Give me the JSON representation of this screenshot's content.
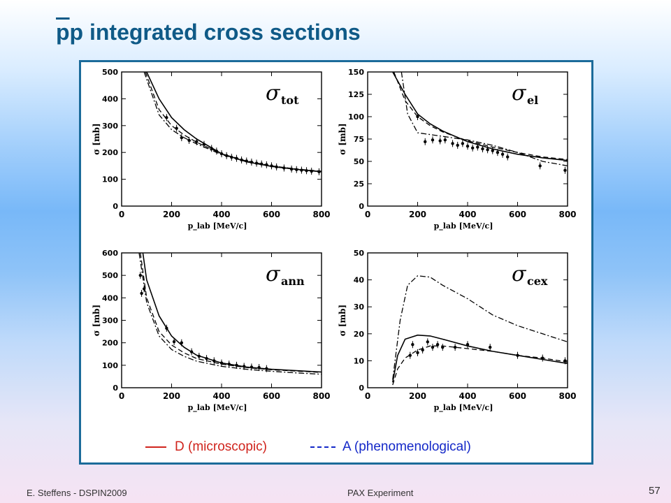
{
  "slide": {
    "title_bar": "p",
    "title_rest": "p integrated cross sections",
    "footer_left": "E. Steffens  -  DSPIN2009",
    "footer_center": "PAX Experiment",
    "page_number": "57"
  },
  "legend": {
    "solid_label": "D (microscopic)",
    "dashed_label": "A (phenomenological)",
    "solid_color": "#d0241d",
    "dashed_color": "#1428c8"
  },
  "chart_data": [
    {
      "type": "line",
      "panel_label": "σ",
      "panel_sub": "tot",
      "ylabel": "σ [mb]",
      "xlabel": "p_lab [MeV/c]",
      "xlim": [
        0,
        800
      ],
      "ylim": [
        0,
        500
      ],
      "xticks": [
        0,
        200,
        400,
        600,
        800
      ],
      "yticks": [
        0,
        100,
        200,
        300,
        400,
        500
      ],
      "series": [
        {
          "style": "solid",
          "x": [
            100,
            150,
            200,
            250,
            300,
            400,
            500,
            600,
            700,
            800
          ],
          "y": [
            500,
            400,
            330,
            285,
            250,
            195,
            165,
            148,
            137,
            128
          ]
        },
        {
          "style": "dashed",
          "x": [
            95,
            150,
            200,
            250,
            300,
            400,
            500,
            600,
            700,
            800
          ],
          "y": [
            500,
            360,
            300,
            265,
            238,
            195,
            168,
            150,
            138,
            130
          ]
        },
        {
          "style": "dashdot",
          "x": [
            90,
            150,
            200,
            250,
            300,
            400,
            500,
            600,
            700,
            800
          ],
          "y": [
            500,
            340,
            285,
            255,
            232,
            192,
            166,
            148,
            137,
            128
          ]
        }
      ],
      "points": {
        "x": [
          180,
          220,
          240,
          270,
          300,
          330,
          360,
          380,
          400,
          420,
          440,
          460,
          480,
          500,
          520,
          540,
          560,
          580,
          600,
          620,
          650,
          680,
          700,
          720,
          740,
          760,
          790
        ],
        "y": [
          330,
          290,
          255,
          245,
          240,
          230,
          215,
          205,
          195,
          188,
          182,
          178,
          172,
          168,
          164,
          160,
          157,
          154,
          150,
          146,
          142,
          138,
          136,
          134,
          132,
          130,
          128
        ]
      }
    },
    {
      "type": "line",
      "panel_label": "σ",
      "panel_sub": "el",
      "ylabel": "σ [mb]",
      "xlabel": "p_lab [MeV/c]",
      "xlim": [
        0,
        800
      ],
      "ylim": [
        0,
        150
      ],
      "xticks": [
        0,
        200,
        400,
        600,
        800
      ],
      "yticks": [
        0,
        25,
        50,
        75,
        100,
        125,
        150
      ],
      "series": [
        {
          "style": "solid",
          "x": [
            100,
            150,
            200,
            250,
            300,
            400,
            500,
            600,
            700,
            800
          ],
          "y": [
            150,
            125,
            103,
            92,
            84,
            72,
            64,
            58,
            54,
            51
          ]
        },
        {
          "style": "dashed",
          "x": [
            105,
            150,
            200,
            250,
            300,
            400,
            500,
            600,
            700,
            800
          ],
          "y": [
            150,
            118,
            100,
            90,
            83,
            73,
            66,
            60,
            55,
            52
          ]
        },
        {
          "style": "dashdot",
          "x": [
            135,
            160,
            200,
            250,
            300,
            400,
            500,
            600,
            700,
            800
          ],
          "y": [
            150,
            103,
            82,
            80,
            78,
            74,
            68,
            60,
            50,
            45
          ]
        }
      ],
      "points": {
        "x": [
          200,
          230,
          260,
          290,
          310,
          340,
          360,
          380,
          400,
          420,
          440,
          460,
          480,
          500,
          520,
          540,
          560,
          690,
          790
        ],
        "y": [
          100,
          72,
          74,
          73,
          74,
          70,
          68,
          70,
          67,
          65,
          66,
          64,
          63,
          62,
          60,
          58,
          55,
          45,
          40
        ]
      }
    },
    {
      "type": "line",
      "panel_label": "σ",
      "panel_sub": "ann",
      "ylabel": "σ [mb]",
      "xlabel": "p_lab [MeV/c]",
      "xlim": [
        0,
        800
      ],
      "ylim": [
        0,
        600
      ],
      "xticks": [
        0,
        200,
        400,
        600,
        800
      ],
      "yticks": [
        0,
        100,
        200,
        300,
        400,
        500,
        600
      ],
      "series": [
        {
          "style": "solid",
          "x": [
            85,
            100,
            150,
            200,
            250,
            300,
            400,
            500,
            600,
            700,
            800
          ],
          "y": [
            600,
            480,
            320,
            230,
            180,
            145,
            110,
            92,
            82,
            76,
            70
          ]
        },
        {
          "style": "dashed",
          "x": [
            75,
            100,
            150,
            200,
            250,
            300,
            400,
            500,
            600,
            700,
            800
          ],
          "y": [
            600,
            400,
            250,
            190,
            155,
            130,
            105,
            90,
            80,
            74,
            68
          ]
        },
        {
          "style": "dashdot",
          "x": [
            70,
            100,
            150,
            200,
            250,
            300,
            400,
            500,
            600,
            700,
            800
          ],
          "y": [
            600,
            380,
            230,
            170,
            140,
            118,
            95,
            82,
            73,
            66,
            60
          ]
        }
      ],
      "points": {
        "x": [
          75,
          80,
          90,
          180,
          210,
          240,
          280,
          310,
          340,
          370,
          400,
          430,
          460,
          490,
          520,
          550,
          580
        ],
        "y": [
          500,
          420,
          440,
          265,
          205,
          200,
          160,
          140,
          130,
          120,
          110,
          105,
          100,
          95,
          92,
          90,
          85
        ]
      }
    },
    {
      "type": "line",
      "panel_label": "σ",
      "panel_sub": "cex",
      "ylabel": "σ [mb]",
      "xlabel": "p_lab [MeV/c]",
      "xlim": [
        0,
        800
      ],
      "ylim": [
        0,
        50
      ],
      "xticks": [
        0,
        200,
        400,
        600,
        800
      ],
      "yticks": [
        0,
        10,
        20,
        30,
        40,
        50
      ],
      "series": [
        {
          "style": "solid",
          "x": [
            100,
            120,
            150,
            200,
            250,
            300,
            400,
            500,
            600,
            700,
            800
          ],
          "y": [
            2,
            12,
            18,
            19.5,
            19.2,
            18,
            15.5,
            13.5,
            12,
            10.5,
            9
          ]
        },
        {
          "style": "dashed",
          "x": [
            100,
            120,
            150,
            200,
            250,
            300,
            400,
            500,
            600,
            700,
            800
          ],
          "y": [
            1,
            7,
            11,
            14,
            15.5,
            15.5,
            14.5,
            13.5,
            12,
            11,
            9.5
          ]
        },
        {
          "style": "dashdot",
          "x": [
            100,
            130,
            160,
            200,
            250,
            300,
            400,
            500,
            600,
            700,
            800
          ],
          "y": [
            3,
            25,
            38,
            41.5,
            41,
            38,
            33,
            27,
            23,
            20,
            17
          ]
        }
      ],
      "points": {
        "x": [
          170,
          180,
          200,
          220,
          240,
          260,
          280,
          300,
          350,
          400,
          490,
          600,
          700,
          790
        ],
        "y": [
          12,
          16,
          13,
          14,
          17,
          15,
          16,
          15,
          15,
          16,
          15,
          12,
          11,
          10
        ]
      }
    }
  ]
}
